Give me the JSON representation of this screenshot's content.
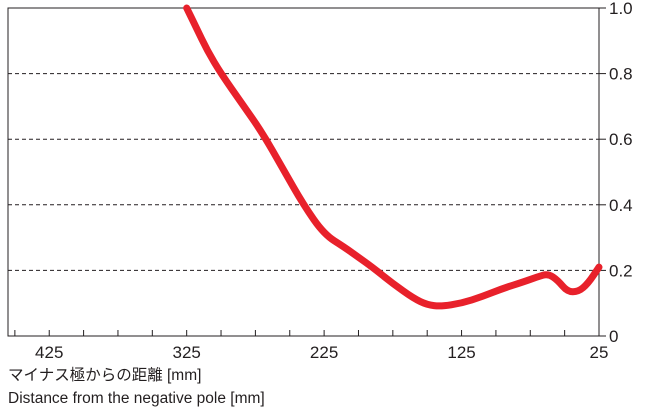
{
  "chart_data": {
    "type": "line",
    "title": "",
    "xlabel_ja": "マイナス極からの距離 [mm]",
    "xlabel_en": "Distance from the negative pole [mm]",
    "ylabel": "",
    "x_reversed": true,
    "xlim": [
      455,
      25
    ],
    "ylim": [
      0,
      1.0
    ],
    "x_ticks": [
      425,
      325,
      225,
      125,
      25
    ],
    "y_ticks": [
      0,
      0.2,
      0.4,
      0.6,
      0.8,
      1.0
    ],
    "y_tick_labels": [
      "0",
      "0.2",
      "0.4",
      "0.6",
      "0.8",
      "1.0"
    ],
    "grid": "horizontal-dashed",
    "y_axis_side": "right",
    "line_color": "#e8212b",
    "series": [
      {
        "x": [
          325,
          318,
          310,
          300,
          285,
          270,
          255,
          240,
          225,
          210,
          200,
          190,
          175,
          160,
          150,
          140,
          125,
          110,
          95,
          80,
          70,
          62,
          55,
          48,
          40,
          33,
          25
        ],
        "y": [
          1.0,
          0.94,
          0.87,
          0.8,
          0.71,
          0.62,
          0.51,
          0.4,
          0.31,
          0.27,
          0.24,
          0.21,
          0.16,
          0.115,
          0.095,
          0.09,
          0.1,
          0.12,
          0.145,
          0.165,
          0.18,
          0.19,
          0.17,
          0.135,
          0.135,
          0.16,
          0.21
        ]
      }
    ]
  }
}
